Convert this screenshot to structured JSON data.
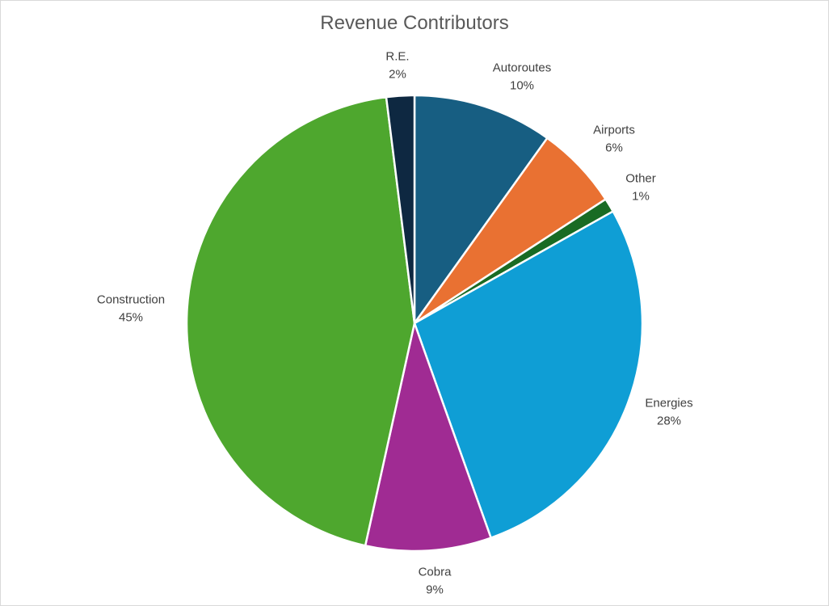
{
  "chart_data": {
    "type": "pie",
    "title": "Revenue Contributors",
    "slices": [
      {
        "label": "Autoroutes",
        "value": 10,
        "value_label": "10%",
        "color": "#175E82"
      },
      {
        "label": "Airports",
        "value": 6,
        "value_label": "6%",
        "color": "#E97132"
      },
      {
        "label": "Other",
        "value": 1,
        "value_label": "1%",
        "color": "#196B24"
      },
      {
        "label": "Energies",
        "value": 28,
        "value_label": "28%",
        "color": "#0F9ED5"
      },
      {
        "label": "Cobra",
        "value": 9,
        "value_label": "9%",
        "color": "#A02B93"
      },
      {
        "label": "Construction",
        "value": 45,
        "value_label": "45%",
        "color": "#4EA72E"
      },
      {
        "label": "R.E.",
        "value": 2,
        "value_label": "2%",
        "color": "#0E2841"
      }
    ],
    "start_angle_deg": 0,
    "direction": "clockwise",
    "legend": "none",
    "data_labels": "outside"
  }
}
